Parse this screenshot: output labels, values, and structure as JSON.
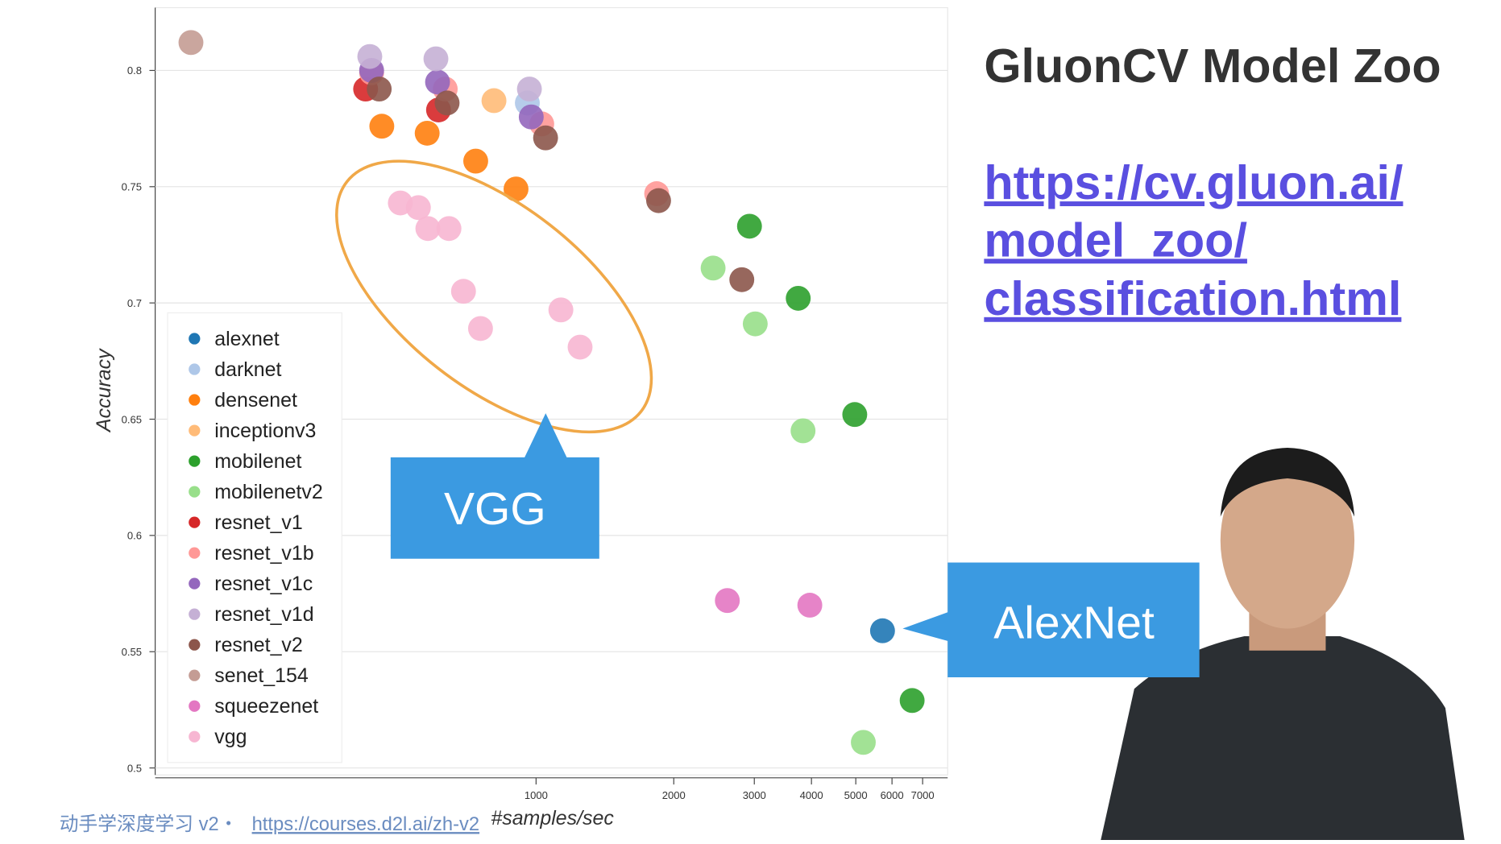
{
  "chart_data": {
    "type": "scatter",
    "x_label": "#samples/sec",
    "y_label": "Accuracy",
    "log_x": true,
    "grid": true,
    "legend": "bottom-left",
    "xlim": [
      147,
      7940
    ],
    "ylim": [
      0.497,
      0.827
    ],
    "xticks": [
      1000,
      2000,
      3000,
      4000,
      5000,
      6000,
      7000
    ],
    "yticks": [
      0.5,
      0.55,
      0.6,
      0.65,
      0.7,
      0.75,
      0.8
    ],
    "series": [
      {
        "name": "alexnet",
        "color": "#1f77b4",
        "x": [
          5720
        ],
        "values": [
          0.559
        ]
      },
      {
        "name": "darknet",
        "color": "#aec7e8",
        "x": [
          957
        ],
        "values": [
          0.786
        ]
      },
      {
        "name": "densenet",
        "color": "#ff7f0e",
        "x": [
          460,
          578,
          738,
          904
        ],
        "values": [
          0.776,
          0.773,
          0.761,
          0.749
        ]
      },
      {
        "name": "inceptionv3",
        "color": "#ffbb78",
        "x": [
          809
        ],
        "values": [
          0.787
        ]
      },
      {
        "name": "mobilenet",
        "color": "#2ca02c",
        "x": [
          2928,
          3742,
          4974,
          6640
        ],
        "values": [
          0.733,
          0.702,
          0.652,
          0.529
        ]
      },
      {
        "name": "mobilenetv2",
        "color": "#98df8a",
        "x": [
          2438,
          3014,
          3834,
          5193
        ],
        "values": [
          0.715,
          0.691,
          0.645,
          0.511
        ]
      },
      {
        "name": "resnet_v1",
        "color": "#d62728",
        "x": [
          424,
          612
        ],
        "values": [
          0.792,
          0.783
        ]
      },
      {
        "name": "resnet_v1b",
        "color": "#ff9896",
        "x": [
          437,
          633,
          1029,
          1835
        ],
        "values": [
          0.799,
          0.792,
          0.777,
          0.747
        ]
      },
      {
        "name": "resnet_v1c",
        "color": "#9467bd",
        "x": [
          437,
          609,
          976
        ],
        "values": [
          0.8,
          0.795,
          0.78
        ]
      },
      {
        "name": "resnet_v1d",
        "color": "#c5b0d5",
        "x": [
          433,
          604,
          967
        ],
        "values": [
          0.806,
          0.805,
          0.792
        ]
      },
      {
        "name": "resnet_v2",
        "color": "#8c564b",
        "x": [
          454,
          639,
          1049,
          1853,
          2817
        ],
        "values": [
          0.792,
          0.786,
          0.771,
          0.744,
          0.71
        ]
      },
      {
        "name": "senet_154",
        "color": "#c49c94",
        "x": [
          176
        ],
        "values": [
          0.812
        ]
      },
      {
        "name": "squeezenet",
        "color": "#e377c2",
        "x": [
          2619,
          3967
        ],
        "values": [
          0.572,
          0.57
        ]
      },
      {
        "name": "vgg",
        "color": "#f7b6d2",
        "x": [
          505,
          553,
          580,
          645,
          694,
          756,
          1133,
          1248
        ],
        "values": [
          0.743,
          0.741,
          0.732,
          0.732,
          0.705,
          0.689,
          0.697,
          0.681
        ]
      }
    ],
    "annotations": [
      "VGG",
      "AlexNet"
    ]
  },
  "slide": {
    "title": "GluonCV Model Zoo",
    "link_lines": [
      "https://cv.gluon.ai/",
      "model_zoo/",
      "classification.html"
    ],
    "footer": "动手学深度学习 v2・",
    "footer_link": "https://courses.d2l.ai/zh-v2"
  }
}
